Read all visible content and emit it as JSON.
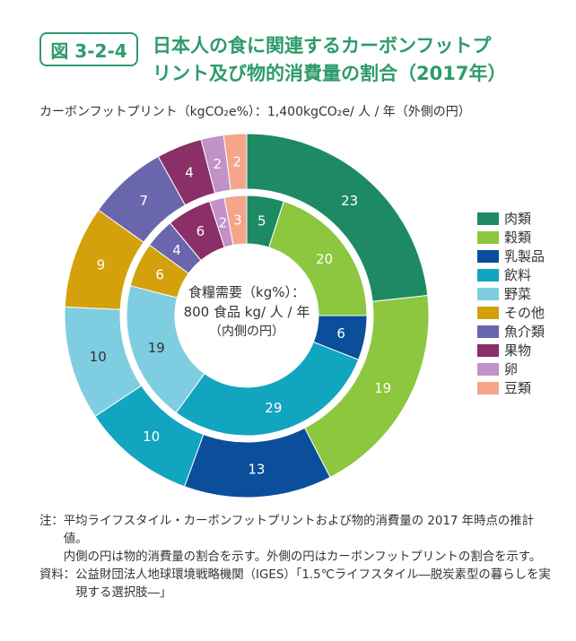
{
  "figure": {
    "number": "図 3-2-4",
    "title_lines": [
      "日本人の食に関連するカーボンフットプ",
      "リント及び物的消費量の割合（2017年）"
    ],
    "subtitle": "カーボンフットプリント（kgCO₂e%）：1,400kgCO₂e/ 人 / 年（外側の円）"
  },
  "chart_data": {
    "type": "pie",
    "subtype": "double-donut",
    "center_label_lines": [
      "食糧需要（kg%）：",
      "800 食品 kg/ 人 / 年",
      "（内側の円）"
    ],
    "categories": [
      "肉類",
      "穀類",
      "乳製品",
      "飲料",
      "野菜",
      "その他",
      "魚介類",
      "果物",
      "卵",
      "豆類"
    ],
    "colors": [
      "#1e8a63",
      "#8dc63f",
      "#0b4e9b",
      "#11a5bf",
      "#7fcde0",
      "#d4a10c",
      "#6a66ad",
      "#8a2f67",
      "#c291c8",
      "#f4a48b"
    ],
    "series": [
      {
        "name": "外側の円",
        "values": [
          23,
          19,
          13,
          10,
          10,
          9,
          7,
          4,
          2,
          2
        ]
      },
      {
        "name": "内側の円",
        "values": [
          5,
          20,
          6,
          29,
          19,
          6,
          4,
          6,
          2,
          3
        ]
      }
    ],
    "legend_position": "right"
  },
  "notes": [
    {
      "label": "注：",
      "lines": [
        "平均ライフスタイル・カーボンフットプリントおよび物的消費量の 2017 年時点の推計値。",
        "内側の円は物的消費量の割合を示す。外側の円はカーボンフットプリントの割合を示す。"
      ]
    },
    {
      "label": "資料：",
      "lines": [
        "公益財団法人地球環境戦略機関（IGES）「1.5℃ライフスタイル―脱炭素型の暮らしを実現する選択肢―」"
      ]
    }
  ]
}
